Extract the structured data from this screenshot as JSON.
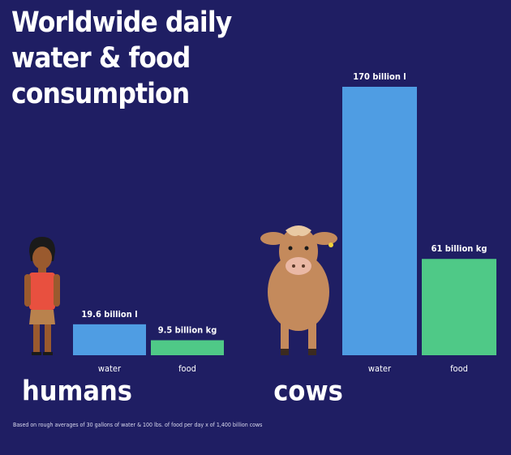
{
  "chart_data": {
    "type": "bar",
    "title": "Worldwide daily water & food consumption",
    "groups": [
      {
        "name": "humans",
        "categories": [
          "water",
          "food"
        ],
        "values": [
          19.6,
          9.5
        ],
        "value_labels": [
          "19.6 billion l",
          "9.5 billion kg"
        ]
      },
      {
        "name": "cows",
        "categories": [
          "water",
          "food"
        ],
        "values": [
          170,
          61
        ],
        "value_labels": [
          "170 billion l",
          "61 billion kg"
        ]
      }
    ],
    "colors": [
      "#4f9de3",
      "#4fc987"
    ],
    "footnote": "Based on rough averages of 30 gallons of water & 100 lbs. of food per day x of 1,400 billion cows"
  }
}
